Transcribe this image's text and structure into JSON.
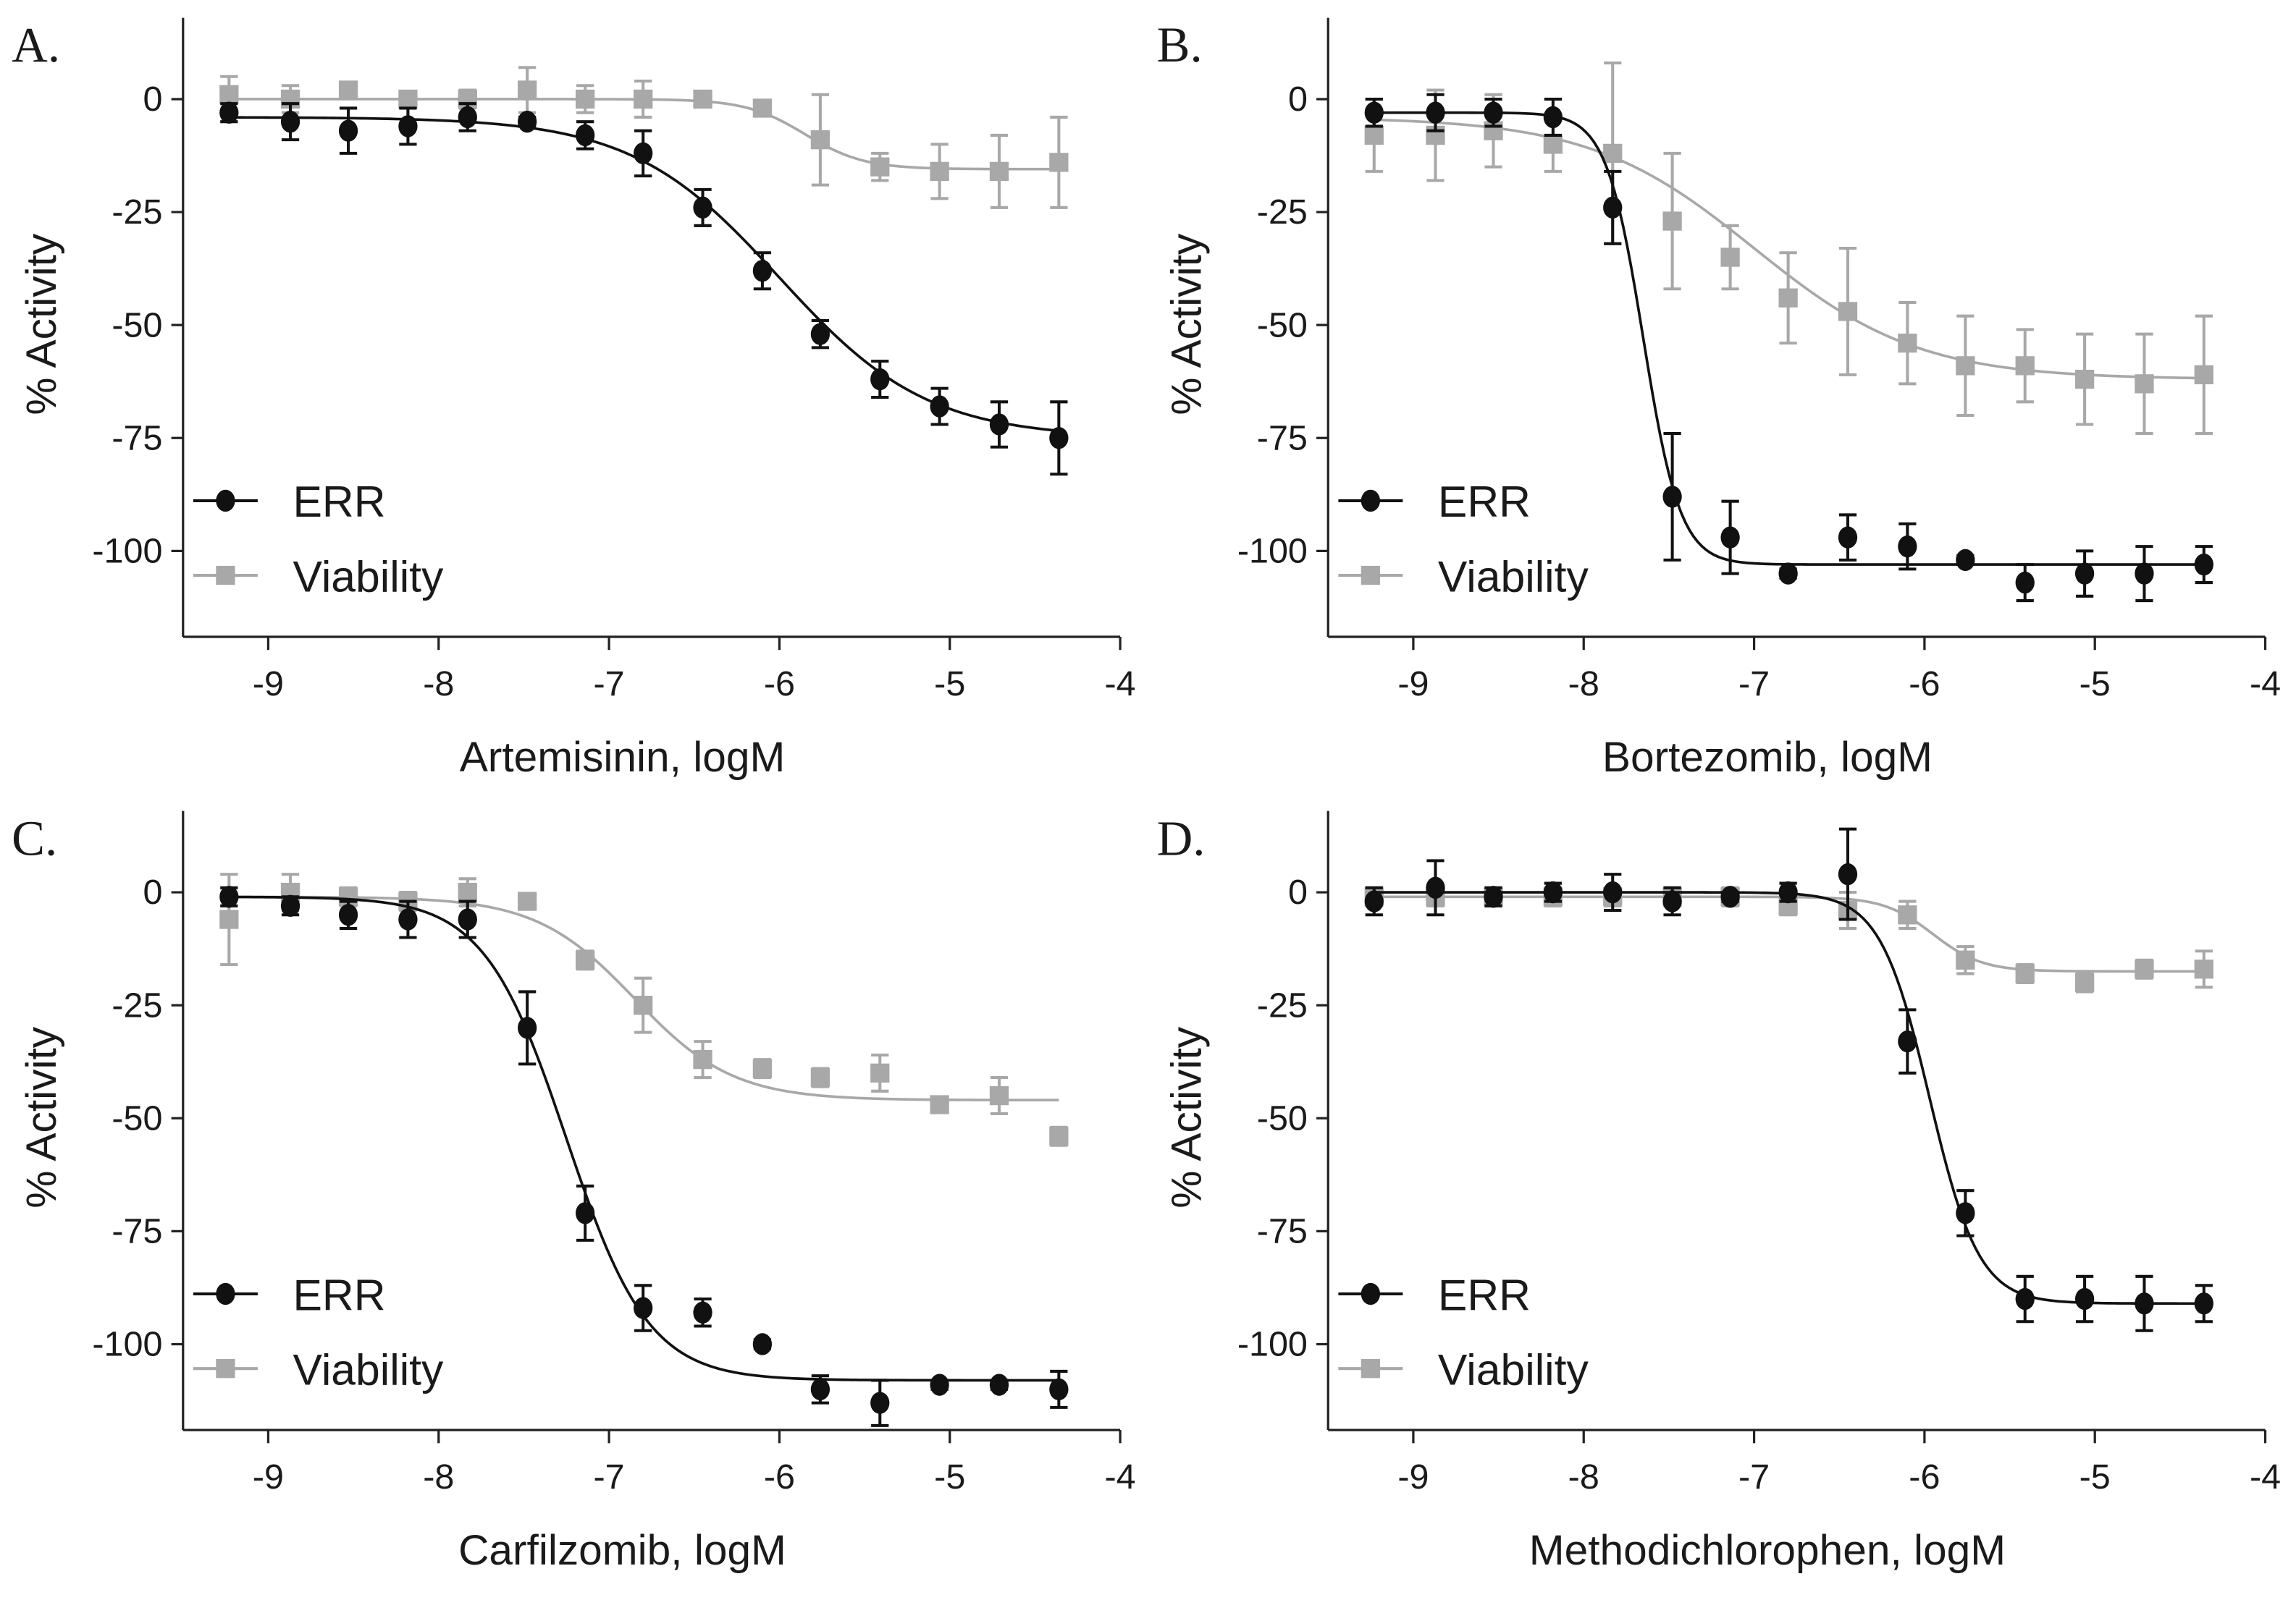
{
  "colors": {
    "err": "#111111",
    "viability": "#a8a8a8",
    "axis": "#222222"
  },
  "chart_data": [
    {
      "type": "line",
      "panel": "A.",
      "xlabel": "Artemisinin, logM",
      "ylabel": "% Activity",
      "xlim": [
        -9.5,
        -4
      ],
      "ylim": [
        -119,
        18
      ],
      "xticks": [
        -9,
        -8,
        -7,
        -6,
        -5,
        -4
      ],
      "yticks": [
        0,
        -25,
        -50,
        -75,
        -100
      ],
      "legend": {
        "placement": "bottom-left",
        "entries": [
          "ERR",
          "Viability"
        ]
      },
      "x": [
        -9.23,
        -8.87,
        -8.53,
        -8.18,
        -7.83,
        -7.48,
        -7.14,
        -6.8,
        -6.45,
        -6.1,
        -5.76,
        -5.41,
        -5.06,
        -4.71,
        -4.36
      ],
      "series": [
        {
          "name": "ERR",
          "marker": "circle",
          "values": [
            -3,
            -5,
            -7,
            -6,
            -4,
            -5,
            -8,
            -12,
            -24,
            -38,
            -52,
            -62,
            -68,
            -72,
            -75
          ],
          "errors": [
            2,
            4,
            5,
            4,
            3,
            1,
            3,
            5,
            4,
            4,
            3,
            4,
            4,
            5,
            8
          ],
          "fit": {
            "top": -4,
            "bottom": -75,
            "logEC50": -6.0,
            "hill": 1.0
          }
        },
        {
          "name": "Viability",
          "marker": "square",
          "values": [
            1,
            0,
            2,
            0,
            0,
            2,
            0,
            0,
            0,
            -2,
            -9,
            -15,
            -16,
            -16,
            -14
          ],
          "errors": [
            4,
            3,
            1,
            1,
            2,
            5,
            3,
            4,
            1,
            1,
            10,
            3,
            6,
            8,
            10
          ],
          "fit": {
            "top": 0,
            "bottom": -15.5,
            "logEC50": -5.85,
            "hill": 2.5
          }
        }
      ]
    },
    {
      "type": "line",
      "panel": "B.",
      "xlabel": "Bortezomib, logM",
      "ylabel": "% Activity",
      "xlim": [
        -9.5,
        -4
      ],
      "ylim": [
        -119,
        18
      ],
      "xticks": [
        -9,
        -8,
        -7,
        -6,
        -5,
        -4
      ],
      "yticks": [
        0,
        -25,
        -50,
        -75,
        -100
      ],
      "legend": {
        "placement": "bottom-left",
        "entries": [
          "ERR",
          "Viability"
        ]
      },
      "x": [
        -9.23,
        -8.87,
        -8.53,
        -8.18,
        -7.83,
        -7.48,
        -7.14,
        -6.8,
        -6.45,
        -6.1,
        -5.76,
        -5.41,
        -5.06,
        -4.71,
        -4.36
      ],
      "series": [
        {
          "name": "ERR",
          "marker": "circle",
          "values": [
            -3,
            -3,
            -3,
            -4,
            -24,
            -88,
            -97,
            -105,
            -97,
            -99,
            -102,
            -107,
            -105,
            -105,
            -103
          ],
          "errors": [
            3,
            4,
            3,
            4,
            8,
            14,
            8,
            1,
            5,
            5,
            1,
            4,
            5,
            6,
            4
          ],
          "fit": {
            "top": -3,
            "bottom": -103,
            "logEC50": -7.65,
            "hill": 4.0
          }
        },
        {
          "name": "Viability",
          "marker": "square",
          "values": [
            -8,
            -8,
            -7,
            -10,
            -12,
            -27,
            -35,
            -44,
            -47,
            -54,
            -59,
            -59,
            -62,
            -63,
            -61
          ],
          "errors": [
            8,
            10,
            8,
            6,
            20,
            15,
            7,
            10,
            14,
            9,
            11,
            8,
            10,
            11,
            13
          ],
          "fit": {
            "top": -4,
            "bottom": -62,
            "logEC50": -7.0,
            "hill": 0.9
          }
        }
      ]
    },
    {
      "type": "line",
      "panel": "C.",
      "xlabel": "Carfilzomib, logM",
      "ylabel": "% Activity",
      "xlim": [
        -9.5,
        -4
      ],
      "ylim": [
        -119,
        18
      ],
      "xticks": [
        -9,
        -8,
        -7,
        -6,
        -5,
        -4
      ],
      "yticks": [
        0,
        -25,
        -50,
        -75,
        -100
      ],
      "legend": {
        "placement": "bottom-left",
        "entries": [
          "ERR",
          "Viability"
        ]
      },
      "x": [
        -9.23,
        -8.87,
        -8.53,
        -8.18,
        -7.83,
        -7.48,
        -7.14,
        -6.8,
        -6.45,
        -6.1,
        -5.76,
        -5.41,
        -5.06,
        -4.71,
        -4.36
      ],
      "series": [
        {
          "name": "ERR",
          "marker": "circle",
          "values": [
            -1,
            -3,
            -5,
            -6,
            -6,
            -30,
            -71,
            -92,
            -93,
            -100,
            -110,
            -113,
            -109,
            -109,
            -110
          ],
          "errors": [
            2,
            2,
            3,
            4,
            4,
            8,
            6,
            5,
            3,
            1,
            3,
            5,
            1,
            1,
            4
          ],
          "fit": {
            "top": -1,
            "bottom": -108,
            "logEC50": -7.25,
            "hill": 1.8
          }
        },
        {
          "name": "Viability",
          "marker": "square",
          "values": [
            -6,
            0,
            -1,
            -2,
            0,
            -2,
            -15,
            -25,
            -37,
            -39,
            -41,
            -40,
            -47,
            -45,
            -54
          ],
          "errors": [
            10,
            4,
            2,
            2,
            3,
            1,
            2,
            6,
            4,
            2,
            2,
            4,
            1,
            4,
            2
          ],
          "fit": {
            "top": -1,
            "bottom": -46,
            "logEC50": -6.85,
            "hill": 1.5
          }
        }
      ]
    },
    {
      "type": "line",
      "panel": "D.",
      "xlabel": "Methodichlorophen, logM",
      "ylabel": "% Activity",
      "xlim": [
        -9.5,
        -4
      ],
      "ylim": [
        -119,
        18
      ],
      "xticks": [
        -9,
        -8,
        -7,
        -6,
        -5,
        -4
      ],
      "yticks": [
        0,
        -25,
        -50,
        -75,
        -100
      ],
      "legend": {
        "placement": "bottom-left",
        "entries": [
          "ERR",
          "Viability"
        ]
      },
      "x": [
        -9.23,
        -8.87,
        -8.53,
        -8.18,
        -7.83,
        -7.48,
        -7.14,
        -6.8,
        -6.45,
        -6.1,
        -5.76,
        -5.41,
        -5.06,
        -4.71,
        -4.36
      ],
      "series": [
        {
          "name": "ERR",
          "marker": "circle",
          "values": [
            -2,
            1,
            -1,
            0,
            0,
            -2,
            -1,
            0,
            4,
            -33,
            -71,
            -90,
            -90,
            -91,
            -91
          ],
          "errors": [
            3,
            6,
            2,
            2,
            4,
            3,
            1,
            2,
            10,
            7,
            5,
            5,
            5,
            6,
            4
          ],
          "fit": {
            "top": 0,
            "bottom": -91,
            "logEC50": -5.97,
            "hill": 3.0
          }
        },
        {
          "name": "Viability",
          "marker": "square",
          "values": [
            -1,
            -1,
            -1,
            -1,
            -1,
            -1,
            -1,
            -3,
            -4,
            -5,
            -15,
            -18,
            -20,
            -17,
            -17
          ],
          "errors": [
            2,
            2,
            2,
            2,
            2,
            2,
            2,
            2,
            4,
            3,
            3,
            2,
            2,
            2,
            4
          ],
          "fit": {
            "top": -1,
            "bottom": -17.5,
            "logEC50": -5.95,
            "hill": 3.0
          }
        }
      ]
    }
  ]
}
